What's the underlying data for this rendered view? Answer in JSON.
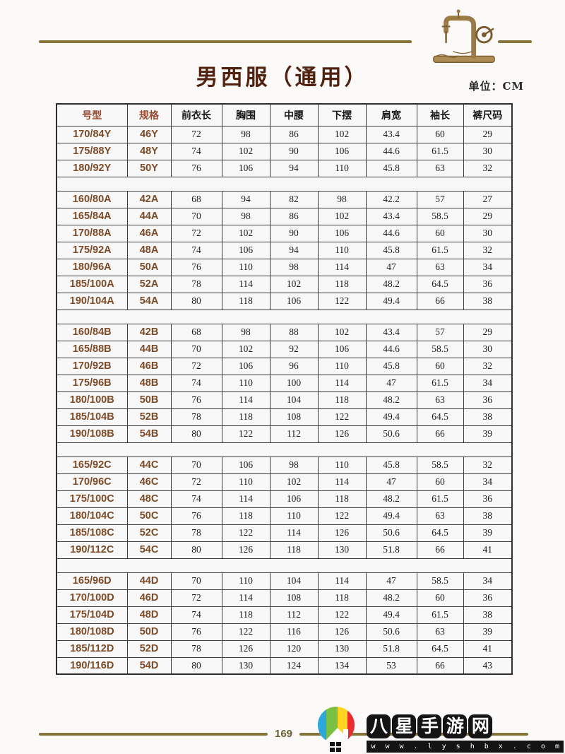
{
  "header": {
    "title": "男西服（通用）",
    "unit_label": "单位：CM"
  },
  "table": {
    "headers": [
      "号型",
      "规格",
      "前衣长",
      "胸围",
      "中腰",
      "下摆",
      "肩宽",
      "袖长",
      "裤尺码"
    ],
    "sections": [
      {
        "name": "Y",
        "rows": [
          [
            "170/84Y",
            "46Y",
            "72",
            "98",
            "86",
            "102",
            "43.4",
            "60",
            "29"
          ],
          [
            "175/88Y",
            "48Y",
            "74",
            "102",
            "90",
            "106",
            "44.6",
            "61.5",
            "30"
          ],
          [
            "180/92Y",
            "50Y",
            "76",
            "106",
            "94",
            "110",
            "45.8",
            "63",
            "32"
          ]
        ]
      },
      {
        "name": "A",
        "rows": [
          [
            "160/80A",
            "42A",
            "68",
            "94",
            "82",
            "98",
            "42.2",
            "57",
            "27"
          ],
          [
            "165/84A",
            "44A",
            "70",
            "98",
            "86",
            "102",
            "43.4",
            "58.5",
            "29"
          ],
          [
            "170/88A",
            "46A",
            "72",
            "102",
            "90",
            "106",
            "44.6",
            "60",
            "30"
          ],
          [
            "175/92A",
            "48A",
            "74",
            "106",
            "94",
            "110",
            "45.8",
            "61.5",
            "32"
          ],
          [
            "180/96A",
            "50A",
            "76",
            "110",
            "98",
            "114",
            "47",
            "63",
            "34"
          ],
          [
            "185/100A",
            "52A",
            "78",
            "114",
            "102",
            "118",
            "48.2",
            "64.5",
            "36"
          ],
          [
            "190/104A",
            "54A",
            "80",
            "118",
            "106",
            "122",
            "49.4",
            "66",
            "38"
          ]
        ]
      },
      {
        "name": "B",
        "rows": [
          [
            "160/84B",
            "42B",
            "68",
            "98",
            "88",
            "102",
            "43.4",
            "57",
            "29"
          ],
          [
            "165/88B",
            "44B",
            "70",
            "102",
            "92",
            "106",
            "44.6",
            "58.5",
            "30"
          ],
          [
            "170/92B",
            "46B",
            "72",
            "106",
            "96",
            "110",
            "45.8",
            "60",
            "32"
          ],
          [
            "175/96B",
            "48B",
            "74",
            "110",
            "100",
            "114",
            "47",
            "61.5",
            "34"
          ],
          [
            "180/100B",
            "50B",
            "76",
            "114",
            "104",
            "118",
            "48.2",
            "63",
            "36"
          ],
          [
            "185/104B",
            "52B",
            "78",
            "118",
            "108",
            "122",
            "49.4",
            "64.5",
            "38"
          ],
          [
            "190/108B",
            "54B",
            "80",
            "122",
            "112",
            "126",
            "50.6",
            "66",
            "39"
          ]
        ]
      },
      {
        "name": "C",
        "rows": [
          [
            "165/92C",
            "44C",
            "70",
            "106",
            "98",
            "110",
            "45.8",
            "58.5",
            "32"
          ],
          [
            "170/96C",
            "46C",
            "72",
            "110",
            "102",
            "114",
            "47",
            "60",
            "34"
          ],
          [
            "175/100C",
            "48C",
            "74",
            "114",
            "106",
            "118",
            "48.2",
            "61.5",
            "36"
          ],
          [
            "180/104C",
            "50C",
            "76",
            "118",
            "110",
            "122",
            "49.4",
            "63",
            "38"
          ],
          [
            "185/108C",
            "52C",
            "78",
            "122",
            "114",
            "126",
            "50.6",
            "64.5",
            "39"
          ],
          [
            "190/112C",
            "54C",
            "80",
            "126",
            "118",
            "130",
            "51.8",
            "66",
            "41"
          ]
        ]
      },
      {
        "name": "D",
        "rows": [
          [
            "165/96D",
            "44D",
            "70",
            "110",
            "104",
            "114",
            "47",
            "58.5",
            "34"
          ],
          [
            "170/100D",
            "46D",
            "72",
            "114",
            "108",
            "118",
            "48.2",
            "60",
            "36"
          ],
          [
            "175/104D",
            "48D",
            "74",
            "118",
            "112",
            "122",
            "49.4",
            "61.5",
            "38"
          ],
          [
            "180/108D",
            "50D",
            "76",
            "122",
            "116",
            "126",
            "50.6",
            "63",
            "39"
          ],
          [
            "185/112D",
            "52D",
            "78",
            "126",
            "120",
            "130",
            "51.8",
            "64.5",
            "41"
          ],
          [
            "190/116D",
            "54D",
            "80",
            "130",
            "124",
            "134",
            "53",
            "66",
            "43"
          ]
        ]
      }
    ]
  },
  "footer": {
    "page_number": "169"
  },
  "watermark": {
    "site_name": "八星手游网",
    "site_url": "w w w . l y s h b x . c o m"
  },
  "colors": {
    "gold_rule": "#87763a",
    "title_brown": "#52220f",
    "header_accent": "#9c4a2f",
    "cell_accent": "#7e4a26",
    "logo_blue": "#2aa9e0",
    "logo_green": "#7ac143",
    "logo_yellow": "#ffd520",
    "logo_red": "#ef2b2d"
  }
}
